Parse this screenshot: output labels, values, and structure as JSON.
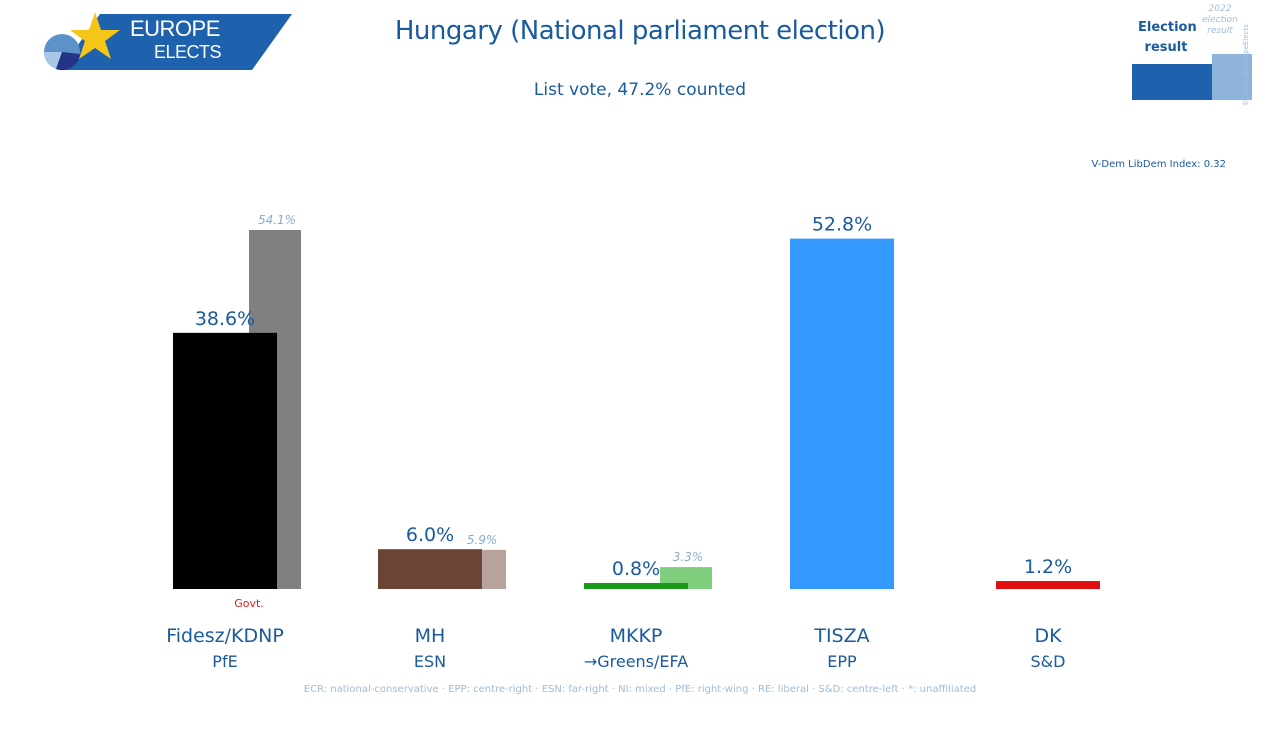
{
  "header": {
    "logo_line1": "EUROPE",
    "logo_line2": "ELECTS",
    "title": "Hungary (National parliament election)",
    "subtitle": "List vote, 47.2% counted"
  },
  "legend": {
    "main_label_line1": "Election",
    "main_label_line2": "result",
    "prev_label_line1": "2022",
    "prev_label_line2": "election",
    "prev_label_line3": "result",
    "copyright": "© 2026 @EuropeElects"
  },
  "vdem": "V-Dem LibDem Index: 0.32",
  "footnote": "ECR: national-conservative · EPP: centre-right · ESN: far-right · NI: mixed · PfE: right-wing · RE: liberal · S&D: centre-left · *: unaffiliated",
  "chart_data": {
    "type": "bar",
    "title": "Hungary (National parliament election)",
    "subtitle": "List vote, 47.2% counted",
    "xlabel": "",
    "ylabel": "",
    "ylim": [
      0,
      60
    ],
    "grid": false,
    "legend_position": "top-right",
    "categories": [
      "Fidesz/KDNP",
      "MH",
      "MKKP",
      "TISZA",
      "DK"
    ],
    "groups": [
      "PfE",
      "ESN",
      "→Greens/EFA",
      "EPP",
      "S&D"
    ],
    "annotations": [
      {
        "category": "Fidesz/KDNP",
        "text": "Govt."
      }
    ],
    "series": [
      {
        "name": "Election result",
        "values": [
          38.6,
          6.0,
          0.8,
          52.8,
          1.2
        ],
        "labels": [
          "38.6%",
          "6.0%",
          "0.8%",
          "52.8%",
          "1.2%"
        ]
      },
      {
        "name": "2022 election result",
        "values": [
          54.1,
          5.9,
          3.3,
          null,
          null
        ],
        "labels": [
          "54.1%",
          "5.9%",
          "3.3%",
          "",
          ""
        ]
      }
    ],
    "colors": [
      "#000000",
      "#6b4436",
      "#1a9a1a",
      "#3399ff",
      "#e01010"
    ],
    "prev_colors": [
      "#808080",
      "#b8a39c",
      "#7fcf7f",
      null,
      null
    ]
  }
}
